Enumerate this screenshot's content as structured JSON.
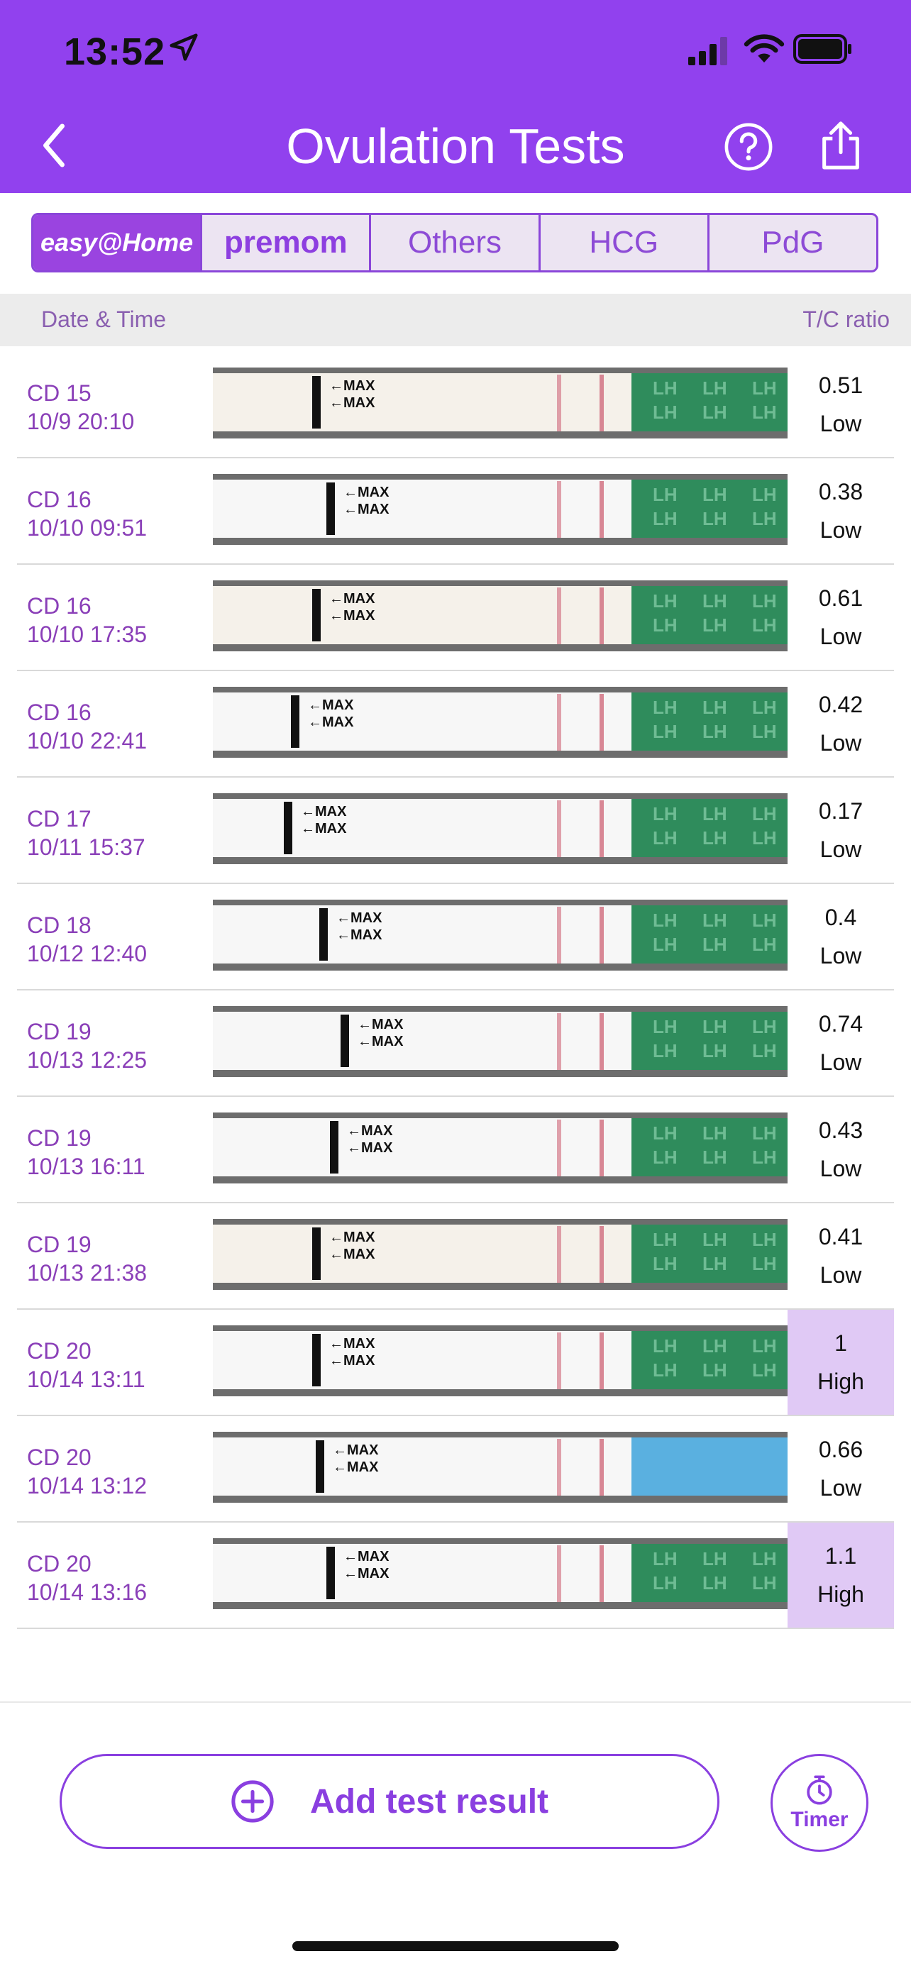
{
  "status_bar": {
    "time": "13:52"
  },
  "header": {
    "title": "Ovulation Tests"
  },
  "brand_tabs": [
    {
      "label": "easy@Home"
    },
    {
      "label": "premom"
    },
    {
      "label": "Others"
    },
    {
      "label": "HCG"
    },
    {
      "label": "PdG"
    }
  ],
  "columns": {
    "date": "Date & Time",
    "ratio": "T/C ratio"
  },
  "strip_text": {
    "max": "←MAX",
    "lh": "LH"
  },
  "rows": [
    {
      "cd": "CD 15",
      "datetime": "10/9 20:10",
      "ratio": "0.51",
      "level": "Low"
    },
    {
      "cd": "CD 16",
      "datetime": "10/10 09:51",
      "ratio": "0.38",
      "level": "Low"
    },
    {
      "cd": "CD 16",
      "datetime": "10/10 17:35",
      "ratio": "0.61",
      "level": "Low"
    },
    {
      "cd": "CD 16",
      "datetime": "10/10 22:41",
      "ratio": "0.42",
      "level": "Low"
    },
    {
      "cd": "CD 17",
      "datetime": "10/11 15:37",
      "ratio": "0.17",
      "level": "Low"
    },
    {
      "cd": "CD 18",
      "datetime": "10/12 12:40",
      "ratio": "0.4",
      "level": "Low"
    },
    {
      "cd": "CD 19",
      "datetime": "10/13 12:25",
      "ratio": "0.74",
      "level": "Low"
    },
    {
      "cd": "CD 19",
      "datetime": "10/13 16:11",
      "ratio": "0.43",
      "level": "Low"
    },
    {
      "cd": "CD 19",
      "datetime": "10/13 21:38",
      "ratio": "0.41",
      "level": "Low"
    },
    {
      "cd": "CD 20",
      "datetime": "10/14 13:11",
      "ratio": "1",
      "level": "High"
    },
    {
      "cd": "CD 20",
      "datetime": "10/14 13:12",
      "ratio": "0.66",
      "level": "Low"
    },
    {
      "cd": "CD 20",
      "datetime": "10/14 13:16",
      "ratio": "1.1",
      "level": "High"
    }
  ],
  "actions": {
    "add_label": "Add test result",
    "timer_label": "Timer"
  },
  "colors": {
    "header_bg": "#9141ee",
    "accent": "#8a3fe0",
    "high_cell": "#e0c9f5",
    "strip_green": "#2f8c5c",
    "test_line": "#d47a8a"
  },
  "icons": {
    "back": "chevron-left-icon",
    "help": "question-circle-icon",
    "share": "share-icon",
    "add": "plus-circle-icon",
    "timer": "stopwatch-icon"
  }
}
